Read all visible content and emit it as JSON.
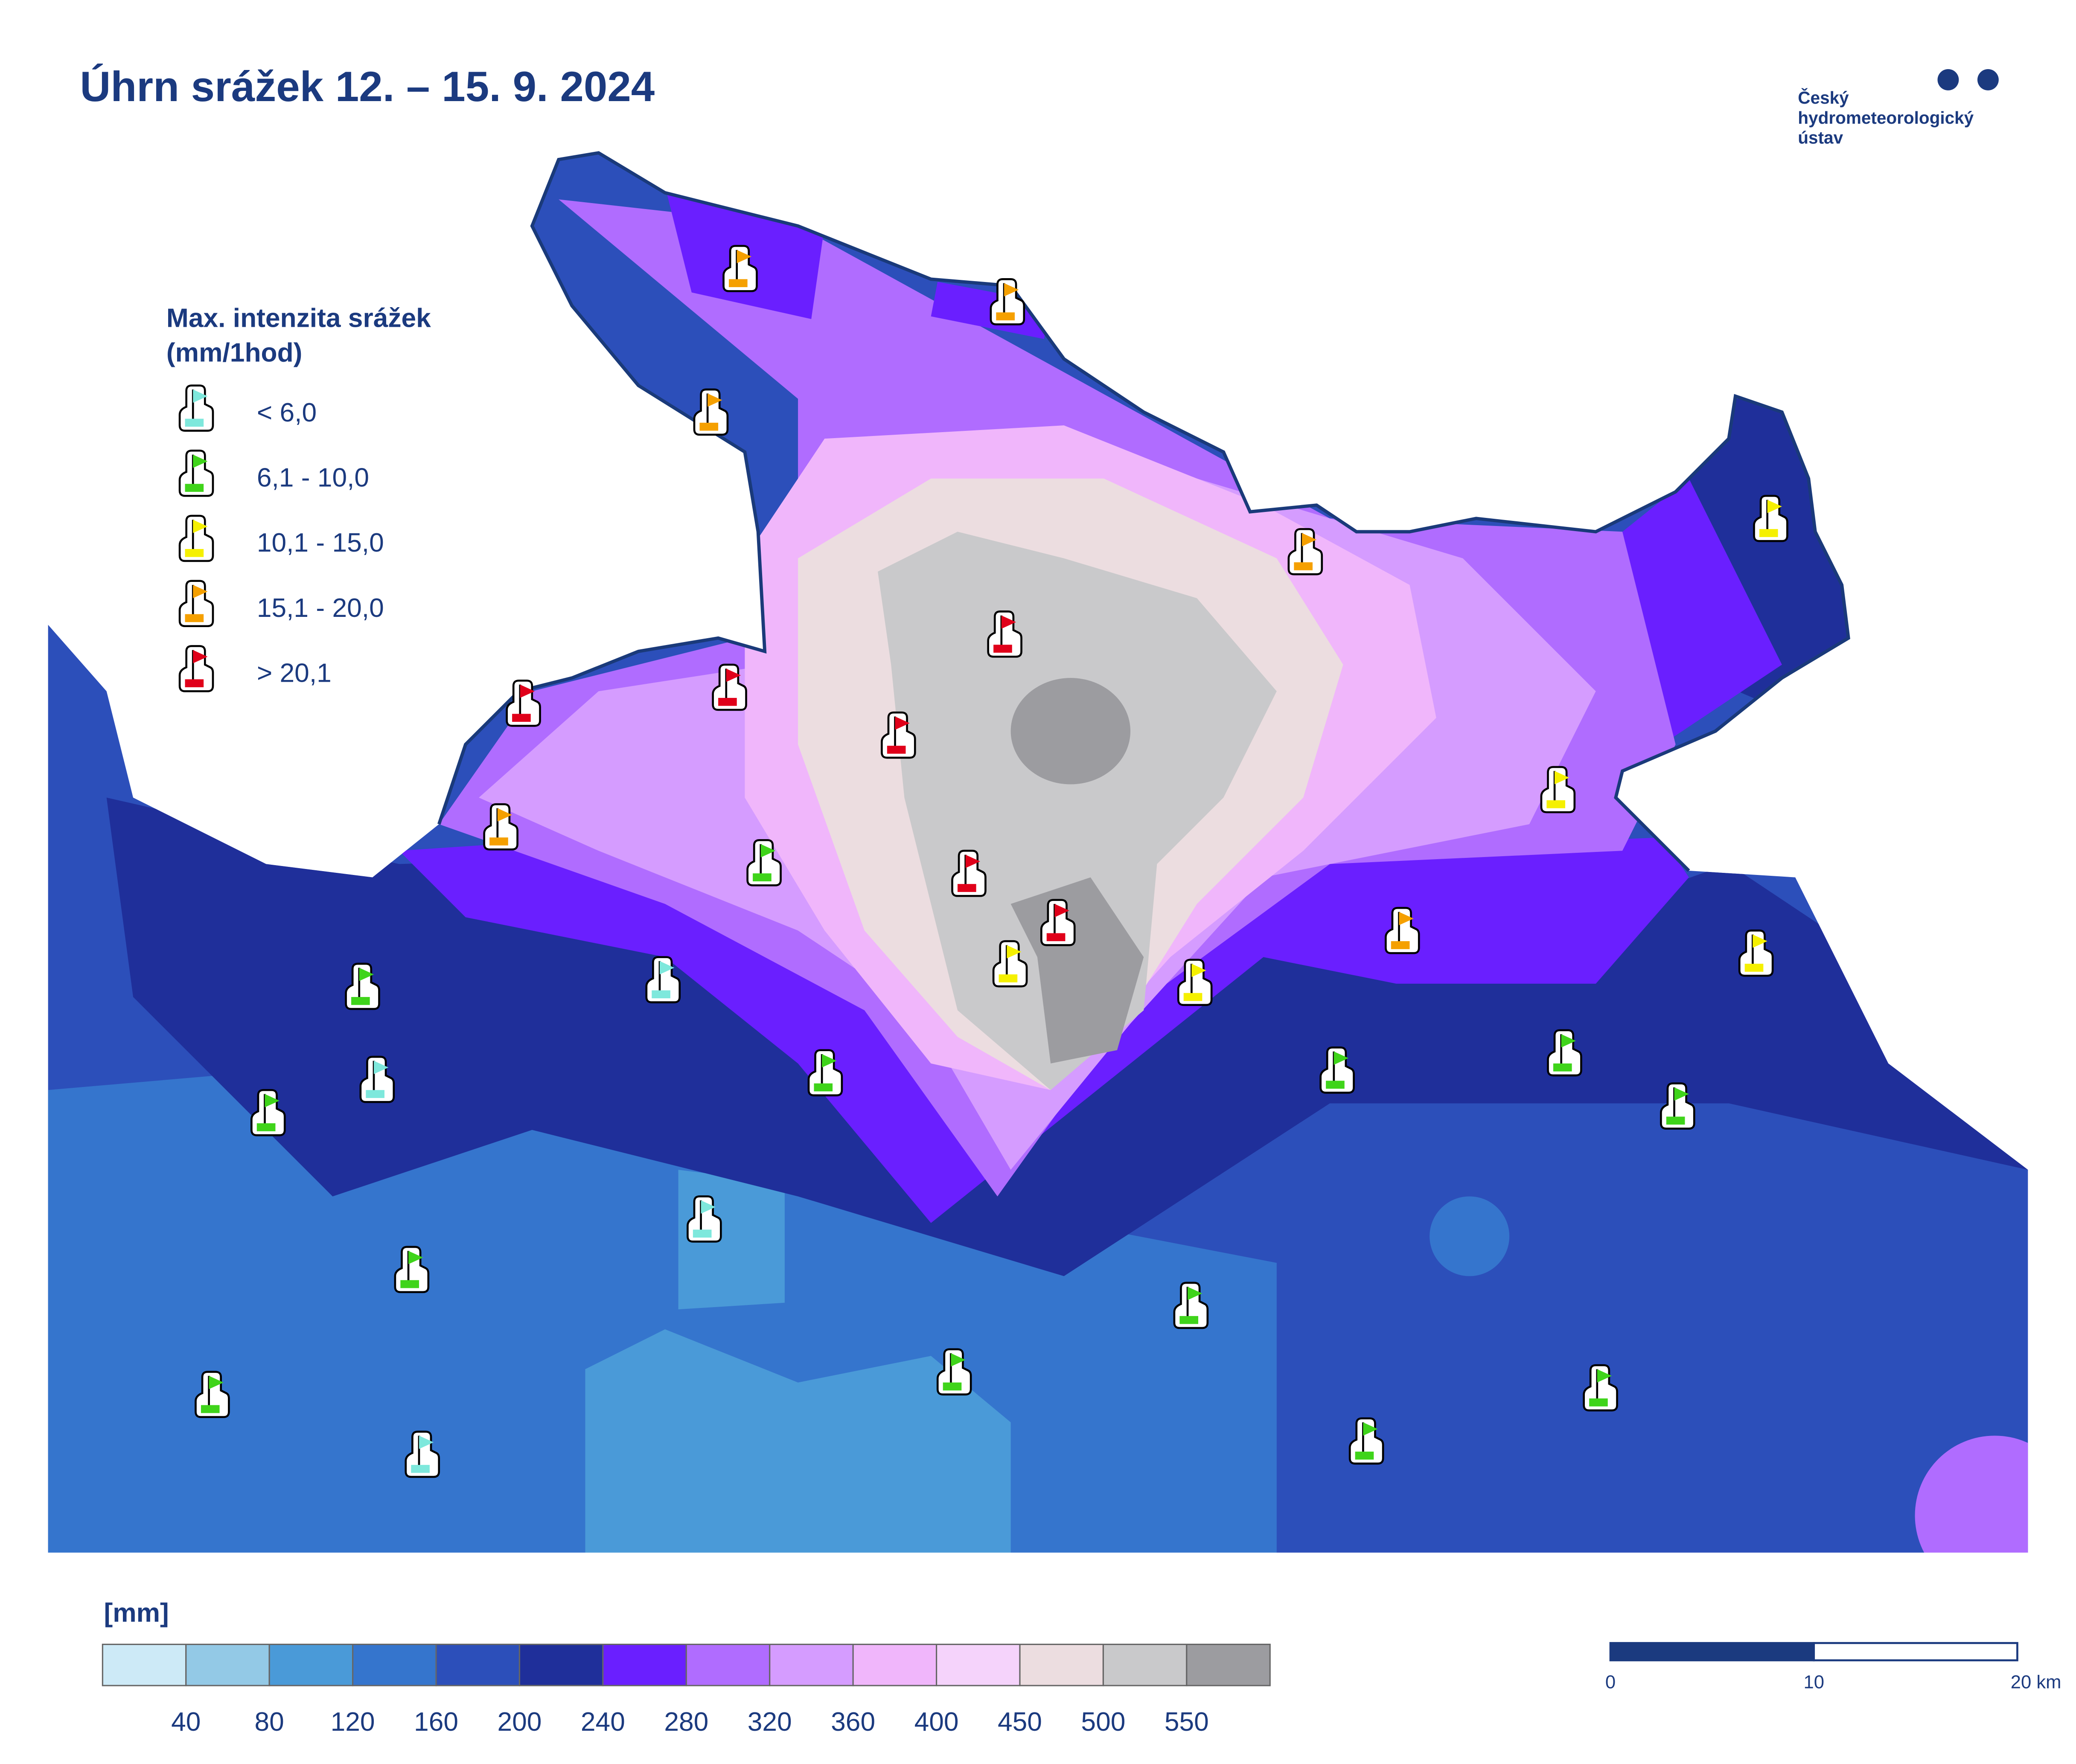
{
  "header": {
    "title": "Úhrn srážek 12. – 15. 9. 2024",
    "logo_lines": [
      "Český",
      "hydrometeorologický",
      "ústav"
    ]
  },
  "intensity_legend": {
    "title_lines": [
      "Max. intenzita srážek",
      "(mm/1hod)"
    ],
    "items": [
      {
        "label": "< 6,0",
        "color": "#7ee8dc"
      },
      {
        "label": "6,1 - 10,0",
        "color": "#3fd41a"
      },
      {
        "label": "10,1 - 15,0",
        "color": "#f5f000"
      },
      {
        "label": "15,1 - 20,0",
        "color": "#f5a000"
      },
      {
        "label": "> 20,1",
        "color": "#e0001a"
      }
    ]
  },
  "precip_scale": {
    "unit": "[mm]",
    "colors": [
      "#cdeaf7",
      "#93c9e6",
      "#4a9ad8",
      "#3575cd",
      "#2c4fba",
      "#1f2f9a",
      "#6a1fff",
      "#b06cff",
      "#d59cff",
      "#f0b6fb",
      "#f5d3fb",
      "#ecdde0",
      "#c9c9cb",
      "#9c9ca0"
    ],
    "ticks": [
      40,
      80,
      120,
      160,
      200,
      240,
      280,
      320,
      360,
      400,
      450,
      500,
      550
    ]
  },
  "scale_bar": {
    "ticks": [
      0,
      10,
      {
        "value": 20,
        "label": "20 km"
      }
    ]
  }
}
